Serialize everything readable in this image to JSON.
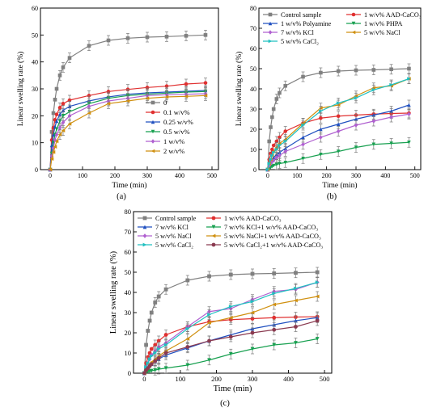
{
  "chart_data": [
    {
      "id": "a",
      "type": "line",
      "panel_label": "(a)",
      "xlabel": "Time (min)",
      "ylabel": "Linear swelling rate (%)",
      "xlim": [
        -30,
        520
      ],
      "ylim": [
        0,
        60
      ],
      "xticks": [
        0,
        100,
        200,
        300,
        400,
        500
      ],
      "yticks": [
        0,
        10,
        20,
        30,
        40,
        50,
        60
      ],
      "legend_position": "right",
      "series": [
        {
          "name": "0",
          "color": "#808080",
          "marker": "square",
          "x": [
            0,
            5,
            10,
            15,
            20,
            30,
            40,
            60,
            120,
            180,
            240,
            300,
            360,
            420,
            480
          ],
          "y": [
            0,
            14,
            21,
            26,
            30,
            35,
            38,
            41.5,
            46,
            48,
            48.8,
            49.2,
            49.4,
            49.7,
            50
          ]
        },
        {
          "name": "0.1 w/v%",
          "color": "#e03030",
          "marker": "circle",
          "x": [
            0,
            5,
            10,
            15,
            20,
            30,
            40,
            60,
            120,
            180,
            240,
            300,
            360,
            420,
            480
          ],
          "y": [
            0,
            11,
            15.5,
            18.5,
            20.5,
            23,
            24.5,
            25.8,
            27.5,
            29,
            29.8,
            30.5,
            31,
            31.8,
            32.2
          ]
        },
        {
          "name": "0.25 w/v%",
          "color": "#2050c0",
          "marker": "triangle-up",
          "x": [
            0,
            5,
            10,
            15,
            20,
            30,
            40,
            60,
            120,
            180,
            240,
            300,
            360,
            420,
            480
          ],
          "y": [
            0,
            9,
            13,
            16,
            18,
            20.5,
            22,
            23.5,
            25.5,
            27,
            28,
            28.5,
            28.8,
            29.1,
            29.4
          ]
        },
        {
          "name": "0.5 w/v%",
          "color": "#18a050",
          "marker": "triangle-down",
          "x": [
            0,
            5,
            10,
            15,
            20,
            30,
            40,
            60,
            120,
            180,
            240,
            300,
            360,
            420,
            480
          ],
          "y": [
            0,
            6,
            10,
            13,
            15,
            18,
            20,
            21.5,
            24.5,
            26.5,
            27.5,
            28,
            28.4,
            28.8,
            29
          ]
        },
        {
          "name": "1 w/v%",
          "color": "#b060d0",
          "marker": "diamond",
          "x": [
            0,
            5,
            10,
            15,
            20,
            30,
            40,
            60,
            120,
            180,
            240,
            300,
            360,
            420,
            480
          ],
          "y": [
            0,
            5,
            8,
            11,
            13,
            15.5,
            17.5,
            20,
            23.5,
            25.5,
            26.5,
            27.5,
            27.8,
            28,
            28.2
          ]
        },
        {
          "name": "2 w/v%",
          "color": "#d09010",
          "marker": "triangle-left",
          "x": [
            0,
            5,
            10,
            15,
            20,
            30,
            40,
            60,
            120,
            180,
            240,
            300,
            360,
            420,
            480
          ],
          "y": [
            0,
            4,
            6.5,
            8.5,
            10.5,
            13,
            14.5,
            17,
            21,
            24.5,
            25.5,
            26.5,
            27,
            27.2,
            27.5
          ]
        }
      ]
    },
    {
      "id": "b",
      "type": "line",
      "panel_label": "(b)",
      "xlabel": "Time (min)",
      "ylabel": "Linear swelling rate (%)",
      "xlim": [
        -30,
        520
      ],
      "ylim": [
        0,
        80
      ],
      "xticks": [
        0,
        100,
        200,
        300,
        400,
        500
      ],
      "yticks": [
        0,
        10,
        20,
        30,
        40,
        50,
        60,
        70,
        80
      ],
      "legend_position": "top",
      "series": [
        {
          "name": "Control sample",
          "color": "#808080",
          "marker": "square",
          "x": [
            0,
            5,
            10,
            15,
            20,
            30,
            40,
            60,
            120,
            180,
            240,
            300,
            360,
            420,
            480
          ],
          "y": [
            0,
            14,
            21,
            26,
            30,
            35,
            38,
            41.5,
            46,
            48,
            48.8,
            49.2,
            49.4,
            49.7,
            50
          ]
        },
        {
          "name": "1 w/v% AAD-CaCO₃",
          "color": "#e03030",
          "marker": "circle",
          "x": [
            0,
            5,
            10,
            15,
            20,
            30,
            40,
            60,
            120,
            180,
            240,
            300,
            360,
            420,
            480
          ],
          "y": [
            0,
            5,
            8,
            10,
            12,
            14,
            16,
            19,
            23,
            25.5,
            26.5,
            27,
            27.5,
            27.8,
            28
          ]
        },
        {
          "name": "1 w/v% Polyamine",
          "color": "#2050c0",
          "marker": "triangle-up",
          "x": [
            0,
            5,
            10,
            15,
            20,
            30,
            40,
            60,
            120,
            180,
            240,
            300,
            360,
            420,
            480
          ],
          "y": [
            0,
            2,
            3.5,
            5,
            6,
            7.5,
            8.5,
            10.5,
            16,
            20,
            22.5,
            25,
            27,
            29,
            32
          ]
        },
        {
          "name": "1 w/v% PHPA",
          "color": "#18a050",
          "marker": "triangle-down",
          "x": [
            0,
            5,
            10,
            15,
            20,
            30,
            40,
            60,
            120,
            180,
            240,
            300,
            360,
            420,
            480
          ],
          "y": [
            0,
            0.5,
            1,
            1.5,
            2,
            2.5,
            3,
            3.5,
            5.5,
            7.5,
            9,
            11,
            12.5,
            13,
            13.5
          ]
        },
        {
          "name": "7 w/v% KCl",
          "color": "#b060d0",
          "marker": "diamond",
          "x": [
            0,
            5,
            10,
            15,
            20,
            30,
            40,
            60,
            120,
            180,
            240,
            300,
            360,
            420,
            480
          ],
          "y": [
            0,
            2,
            3,
            4,
            4.5,
            6,
            7,
            9,
            12.5,
            16,
            19,
            22,
            24,
            26,
            27.5
          ]
        },
        {
          "name": "5 w/v% NaCl",
          "color": "#d09010",
          "marker": "triangle-left",
          "x": [
            0,
            5,
            10,
            15,
            20,
            30,
            40,
            60,
            120,
            180,
            240,
            300,
            360,
            420,
            480
          ],
          "y": [
            0,
            3,
            5,
            7,
            9,
            11,
            13,
            15,
            23,
            30.5,
            32,
            36.5,
            40.5,
            41.5,
            45
          ]
        },
        {
          "name": "5 w/v% CaCl₂",
          "color": "#20c0c0",
          "marker": "triangle-right",
          "x": [
            0,
            5,
            10,
            15,
            20,
            30,
            40,
            60,
            120,
            180,
            240,
            300,
            360,
            420,
            480
          ],
          "y": [
            0,
            3,
            5,
            7,
            8.5,
            10,
            12,
            14,
            22,
            29,
            33,
            35.5,
            39.5,
            42,
            45
          ]
        }
      ]
    },
    {
      "id": "c",
      "type": "line",
      "panel_label": "(c)",
      "xlabel": "Time (min)",
      "ylabel": "Linear swelling rate (%)",
      "xlim": [
        -30,
        520
      ],
      "ylim": [
        0,
        80
      ],
      "xticks": [
        0,
        100,
        200,
        300,
        400,
        500
      ],
      "yticks": [
        0,
        10,
        20,
        30,
        40,
        50,
        60,
        70,
        80
      ],
      "legend_position": "top",
      "series": [
        {
          "name": "Control sample",
          "color": "#808080",
          "marker": "square",
          "x": [
            0,
            5,
            10,
            15,
            20,
            30,
            40,
            60,
            120,
            180,
            240,
            300,
            360,
            420,
            480
          ],
          "y": [
            0,
            14,
            21,
            26,
            30,
            35,
            38,
            41.5,
            46,
            48,
            48.8,
            49.2,
            49.4,
            49.7,
            50
          ]
        },
        {
          "name": "1 w/v% AAD-CaCO₃",
          "color": "#e03030",
          "marker": "circle",
          "x": [
            0,
            5,
            10,
            15,
            20,
            30,
            40,
            60,
            120,
            180,
            240,
            300,
            360,
            420,
            480
          ],
          "y": [
            0,
            5,
            8,
            10,
            12,
            14,
            16,
            19,
            23,
            25.5,
            26.5,
            27,
            27.5,
            27.8,
            28
          ]
        },
        {
          "name": "7 w/v% KCl",
          "color": "#2050c0",
          "marker": "triangle-up",
          "x": [
            0,
            5,
            10,
            15,
            20,
            30,
            40,
            60,
            120,
            180,
            240,
            300,
            360,
            420,
            480
          ],
          "y": [
            0,
            2,
            3,
            4,
            4.5,
            6,
            7,
            9,
            12.5,
            16,
            19,
            22,
            24,
            26,
            27.5
          ]
        },
        {
          "name": "7 w/v% KCl+1 w/v% AAD-CaCO₃",
          "color": "#18a050",
          "marker": "triangle-down",
          "x": [
            0,
            5,
            10,
            15,
            20,
            30,
            40,
            60,
            120,
            180,
            240,
            300,
            360,
            420,
            480
          ],
          "y": [
            0,
            0.5,
            0.8,
            1,
            1.2,
            1.5,
            2,
            2.5,
            4,
            6.5,
            9.5,
            12,
            14,
            15,
            17
          ]
        },
        {
          "name": "5 w/v% NaCl",
          "color": "#b060d0",
          "marker": "diamond",
          "x": [
            0,
            5,
            10,
            15,
            20,
            30,
            40,
            60,
            120,
            180,
            240,
            300,
            360,
            420,
            480
          ],
          "y": [
            0,
            3,
            5,
            7,
            9,
            11,
            13,
            15,
            23,
            30.5,
            32,
            36.5,
            40.5,
            41.5,
            45
          ]
        },
        {
          "name": "5 w/v% NaCl+1 w/v% AAD-CaCO₃",
          "color": "#d09010",
          "marker": "triangle-left",
          "x": [
            0,
            5,
            10,
            15,
            20,
            30,
            40,
            60,
            120,
            180,
            240,
            300,
            360,
            420,
            480
          ],
          "y": [
            0,
            2,
            3,
            4.5,
            5.5,
            7,
            8.5,
            11,
            17,
            25,
            27.5,
            30,
            34,
            36,
            38
          ]
        },
        {
          "name": "5 w/v% CaCl₂",
          "color": "#20c0c0",
          "marker": "triangle-right",
          "x": [
            0,
            5,
            10,
            15,
            20,
            30,
            40,
            60,
            120,
            180,
            240,
            300,
            360,
            420,
            480
          ],
          "y": [
            0,
            3,
            5,
            7,
            8.5,
            10,
            12,
            14,
            22,
            29,
            33,
            35.5,
            39.5,
            42,
            45
          ]
        },
        {
          "name": "5 w/v% CaCl₂+1 w/v% AAD-CaCO₃",
          "color": "#8a3a50",
          "marker": "circle",
          "x": [
            0,
            5,
            10,
            15,
            20,
            30,
            40,
            60,
            120,
            180,
            240,
            300,
            360,
            420,
            480
          ],
          "y": [
            0,
            1.5,
            2.5,
            3.5,
            4.5,
            6,
            7.5,
            10,
            13,
            16,
            18,
            20,
            21.5,
            23,
            26
          ]
        }
      ]
    }
  ]
}
